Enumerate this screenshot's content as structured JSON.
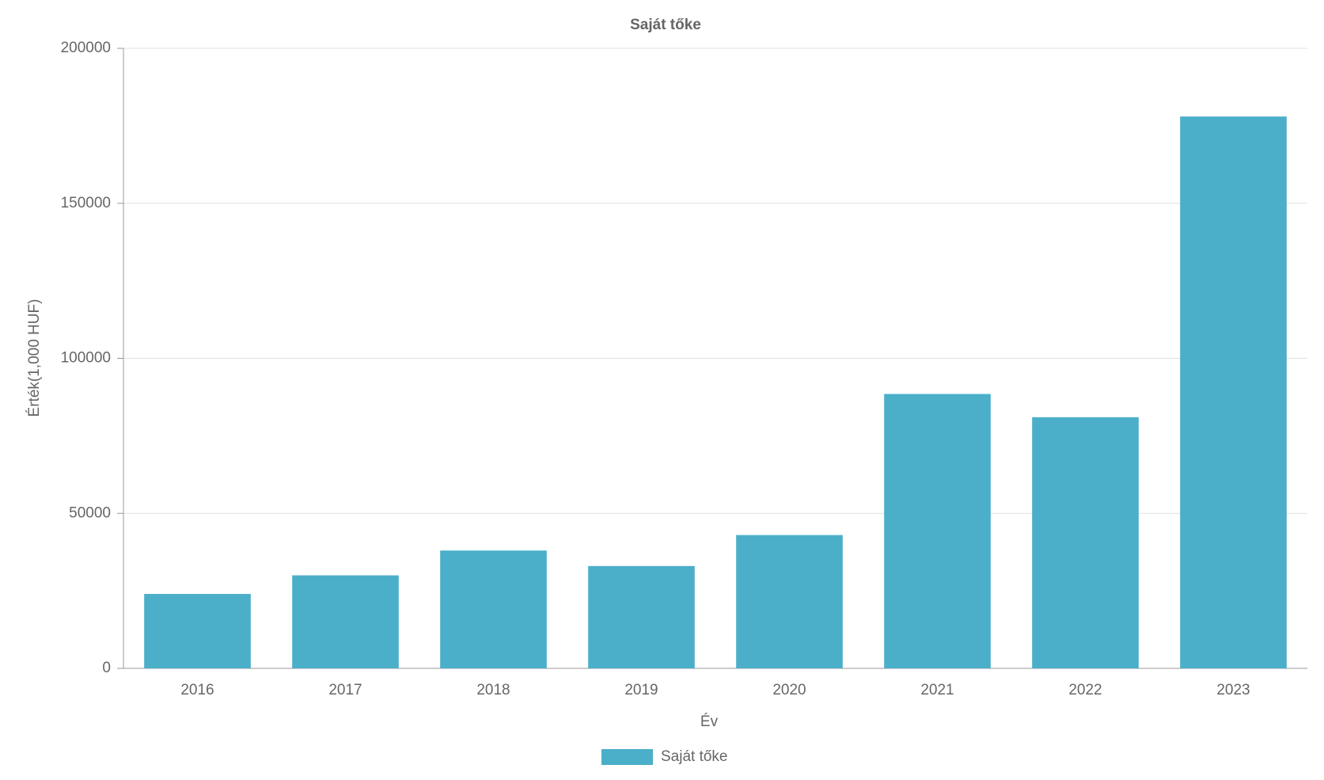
{
  "chart_data": {
    "type": "bar",
    "title": "Saját tőke",
    "x_label": "Év",
    "y_label": "Érték(1,000 HUF)",
    "categories": [
      "2016",
      "2017",
      "2018",
      "2019",
      "2020",
      "2021",
      "2022",
      "2023"
    ],
    "series": [
      {
        "name": "Saját tőke",
        "color": "#4bafc9",
        "values": [
          24000,
          30000,
          38000,
          33000,
          43000,
          88500,
          81000,
          178000
        ]
      }
    ],
    "ylim": [
      0,
      200000
    ],
    "yticks": [
      0,
      50000,
      100000,
      150000,
      200000
    ],
    "grid": true,
    "legend": "bottom"
  }
}
